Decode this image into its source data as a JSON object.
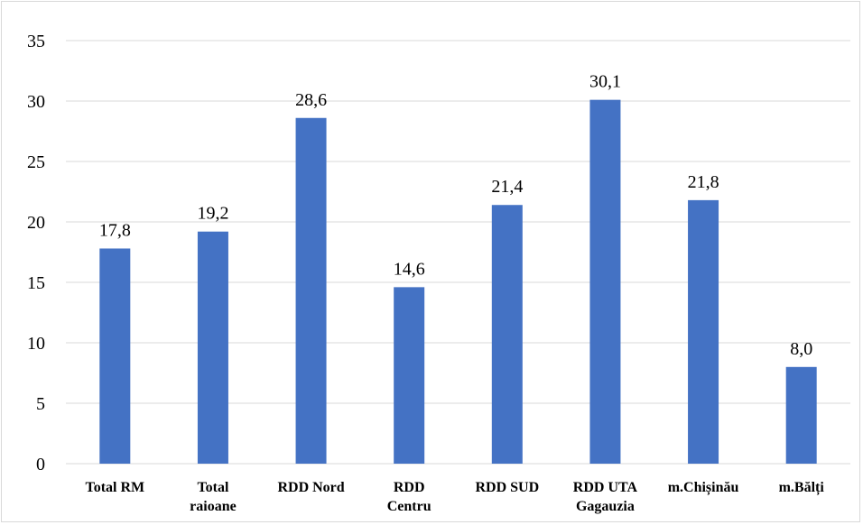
{
  "chart_data": {
    "type": "bar",
    "title": "",
    "xlabel": "",
    "ylabel": "",
    "categories": [
      [
        "Total RM"
      ],
      [
        "Total",
        "raioane"
      ],
      [
        "RDD Nord"
      ],
      [
        "RDD",
        "Centru"
      ],
      [
        "RDD SUD"
      ],
      [
        "RDD UTA",
        "Gagauzia"
      ],
      [
        "m.Chișinău"
      ],
      [
        "m.Bălți"
      ]
    ],
    "values": [
      17.8,
      19.2,
      28.6,
      14.6,
      21.4,
      30.1,
      21.8,
      8.0
    ],
    "data_labels": [
      "17,8",
      "19,2",
      "28,6",
      "14,6",
      "21,4",
      "30,1",
      "21,8",
      "8,0"
    ],
    "ylim": [
      0,
      35
    ],
    "yticks": [
      0,
      5,
      10,
      15,
      20,
      25,
      30,
      35
    ],
    "grid": true,
    "legend": "none",
    "bar_color": "#4472C4",
    "grid_color": "#d9d9d9"
  }
}
